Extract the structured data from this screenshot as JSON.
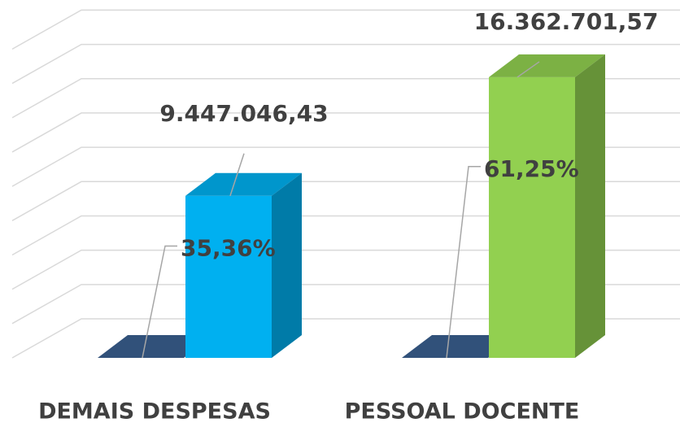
{
  "chart_data": {
    "type": "bar3d",
    "categories": [
      "DEMAIS DESPESAS",
      "PESSOAL DOCENTE"
    ],
    "series": [
      {
        "colors": [
          "#3a5f8f",
          "#3a5f8f"
        ],
        "values": [
          35.36,
          61.25
        ],
        "value_labels": [
          "35,36%",
          "61,25%"
        ]
      },
      {
        "colors": [
          "#00b0f0",
          "#92d050"
        ],
        "values": [
          9447046.43,
          16362701.57
        ],
        "value_labels": [
          "9.447.046,43",
          "16.362.701,57"
        ]
      }
    ],
    "ylim": [
      0,
      18000000
    ],
    "yticks": [
      0,
      2000000,
      4000000,
      6000000,
      8000000,
      10000000,
      12000000,
      14000000,
      16000000,
      18000000
    ],
    "grid": true,
    "show_ytick_labels": false
  }
}
